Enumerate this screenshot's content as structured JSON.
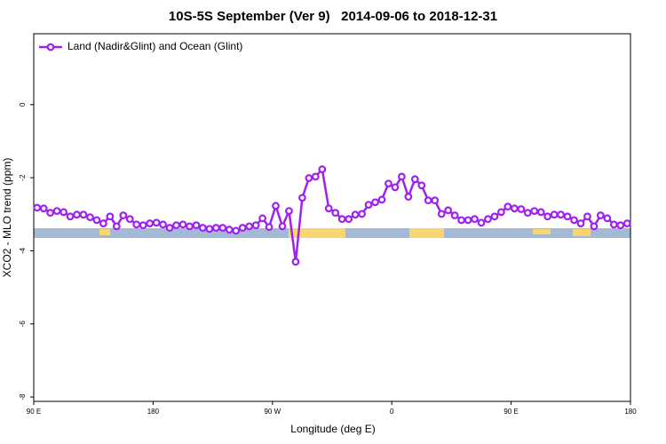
{
  "chart_data": {
    "type": "line",
    "title": "10S-5S September (Ver 9)   2014-09-06 to 2018-12-31",
    "x_label": "Longitude (deg E)",
    "y_label": "XCO2 - MLO trend (ppm)",
    "xlim": [
      90,
      540
    ],
    "ylim": [
      -8.12,
      1.94
    ],
    "xticks": [
      {
        "value": 90,
        "label": "90 E"
      },
      {
        "value": 180,
        "label": "180"
      },
      {
        "value": 270,
        "label": "90 W"
      },
      {
        "value": 360,
        "label": "0"
      },
      {
        "value": 450,
        "label": "90 E"
      },
      {
        "value": 540,
        "label": "180"
      }
    ],
    "yticks": [
      0,
      -2,
      -4,
      -6,
      -8
    ],
    "legend": "top-left",
    "x": [
      92.5,
      97.5,
      102.5,
      107.5,
      112.5,
      117.5,
      122.5,
      127.5,
      132.5,
      137.5,
      142.5,
      147.5,
      152.5,
      157.5,
      162.5,
      167.5,
      172.5,
      177.5,
      182.5,
      187.5,
      192.5,
      197.5,
      202.5,
      207.5,
      212.5,
      217.5,
      222.5,
      227.5,
      232.5,
      237.5,
      242.5,
      247.5,
      252.5,
      257.5,
      262.5,
      267.5,
      272.5,
      277.5,
      282.5,
      287.5,
      292.5,
      297.5,
      302.5,
      307.5,
      312.5,
      317.5,
      322.5,
      327.5,
      332.5,
      337.5,
      342.5,
      347.5,
      352.5,
      357.5,
      362.5,
      367.5,
      372.5,
      377.5,
      382.5,
      387.5,
      392.5,
      397.5,
      402.5,
      407.5,
      412.5,
      417.5,
      422.5,
      427.5,
      432.5,
      437.5,
      442.5,
      447.5,
      452.5,
      457.5,
      462.5,
      467.5,
      472.5,
      477.5,
      482.5,
      487.5,
      492.5,
      497.5,
      502.5,
      507.5,
      512.5,
      517.5,
      522.5,
      527.5,
      532.5,
      537.5
    ],
    "series": [
      {
        "name": "Land (Nadir&Glint) and Ocean (Glint)",
        "color": "#a020f0",
        "values": [
          -2.82,
          -2.84,
          -2.96,
          -2.91,
          -2.94,
          -3.06,
          -3.01,
          -3.01,
          -3.08,
          -3.16,
          -3.25,
          -3.06,
          -3.33,
          -3.03,
          -3.13,
          -3.28,
          -3.3,
          -3.25,
          -3.23,
          -3.28,
          -3.37,
          -3.3,
          -3.28,
          -3.33,
          -3.3,
          -3.37,
          -3.4,
          -3.37,
          -3.37,
          -3.42,
          -3.45,
          -3.37,
          -3.33,
          -3.3,
          -3.11,
          -3.35,
          -2.77,
          -3.33,
          -2.91,
          -4.3,
          -2.55,
          -2.01,
          -1.97,
          -1.77,
          -2.84,
          -2.96,
          -3.13,
          -3.13,
          -3.01,
          -2.99,
          -2.74,
          -2.67,
          -2.6,
          -2.16,
          -2.26,
          -1.97,
          -2.52,
          -2.04,
          -2.21,
          -2.62,
          -2.62,
          -2.99,
          -2.89,
          -3.03,
          -3.16,
          -3.16,
          -3.13,
          -3.23,
          -3.13,
          -3.06,
          -2.94,
          -2.79,
          -2.84,
          -2.86,
          -2.96,
          -2.91,
          -2.94,
          -3.06,
          -3.01,
          -3.01,
          -3.06,
          -3.16,
          -3.25,
          -3.06,
          -3.33,
          -3.03,
          -3.11,
          -3.28,
          -3.3,
          -3.25
        ]
      }
    ]
  }
}
